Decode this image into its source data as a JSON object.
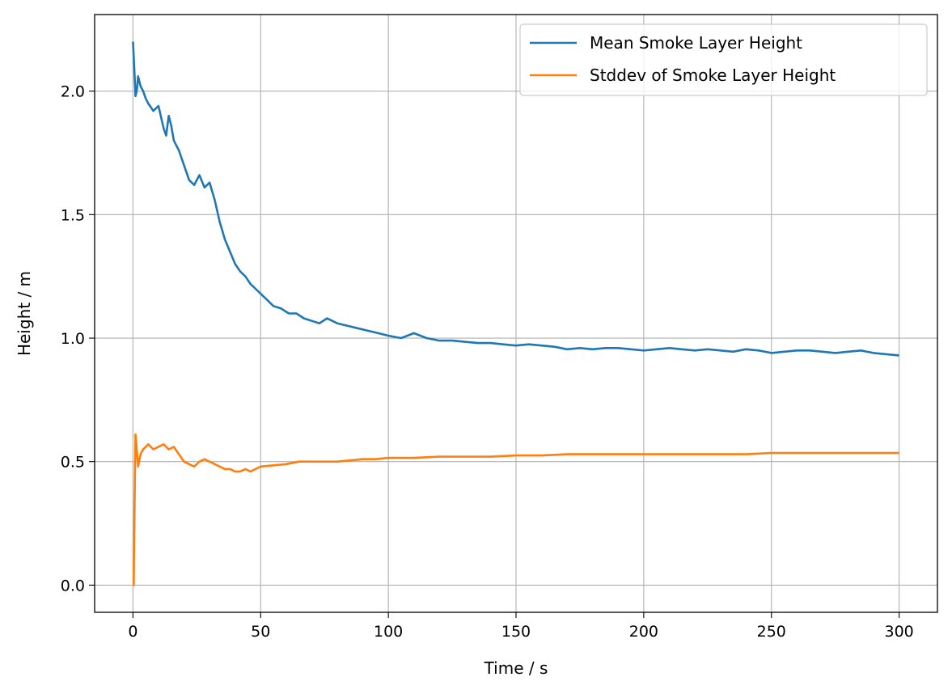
{
  "chart_data": {
    "type": "line",
    "title": "",
    "xlabel": "Time / s",
    "ylabel": "Height / m",
    "xlim": [
      -15,
      315
    ],
    "ylim": [
      -0.11,
      2.31
    ],
    "xticks": [
      0,
      50,
      100,
      150,
      200,
      250,
      300
    ],
    "xtick_labels": [
      "0",
      "50",
      "100",
      "150",
      "200",
      "250",
      "300"
    ],
    "yticks": [
      0.0,
      0.5,
      1.0,
      1.5,
      2.0
    ],
    "ytick_labels": [
      "0.0",
      "0.5",
      "1.0",
      "1.5",
      "2.0"
    ],
    "grid": true,
    "legend_position": "top-right",
    "series": [
      {
        "name": "Mean Smoke Layer Height",
        "color": "#1f77b4",
        "x": [
          0,
          0.5,
          1,
          1.5,
          2,
          3,
          4,
          5,
          6,
          8,
          10,
          12,
          13,
          14,
          15,
          16,
          18,
          20,
          22,
          24,
          26,
          28,
          30,
          32,
          34,
          36,
          38,
          40,
          42,
          44,
          46,
          48,
          50,
          52,
          55,
          58,
          61,
          64,
          67,
          70,
          73,
          76,
          80,
          84,
          88,
          92,
          96,
          100,
          105,
          110,
          115,
          120,
          125,
          130,
          135,
          140,
          145,
          150,
          155,
          160,
          165,
          170,
          175,
          180,
          185,
          190,
          195,
          200,
          205,
          210,
          215,
          220,
          225,
          230,
          235,
          240,
          245,
          250,
          255,
          260,
          265,
          270,
          275,
          280,
          285,
          290,
          295,
          300
        ],
        "y": [
          2.2,
          2.1,
          1.98,
          2.0,
          2.06,
          2.02,
          2.0,
          1.97,
          1.95,
          1.92,
          1.94,
          1.85,
          1.82,
          1.9,
          1.86,
          1.8,
          1.76,
          1.7,
          1.64,
          1.62,
          1.66,
          1.61,
          1.63,
          1.56,
          1.47,
          1.4,
          1.35,
          1.3,
          1.27,
          1.25,
          1.22,
          1.2,
          1.18,
          1.16,
          1.13,
          1.12,
          1.1,
          1.1,
          1.08,
          1.07,
          1.06,
          1.08,
          1.06,
          1.05,
          1.04,
          1.03,
          1.02,
          1.01,
          1.0,
          1.02,
          1.0,
          0.99,
          0.99,
          0.985,
          0.98,
          0.98,
          0.975,
          0.97,
          0.975,
          0.97,
          0.965,
          0.955,
          0.96,
          0.955,
          0.96,
          0.96,
          0.955,
          0.95,
          0.955,
          0.96,
          0.955,
          0.95,
          0.955,
          0.95,
          0.945,
          0.955,
          0.95,
          0.94,
          0.945,
          0.95,
          0.95,
          0.945,
          0.94,
          0.945,
          0.95,
          0.94,
          0.935,
          0.93
        ]
      },
      {
        "name": "Stddev of Smoke Layer Height",
        "color": "#ff7f0e",
        "x": [
          0,
          0.3,
          0.6,
          1,
          1.5,
          2,
          3,
          4,
          5,
          6,
          8,
          10,
          12,
          14,
          16,
          18,
          20,
          22,
          24,
          26,
          28,
          30,
          32,
          34,
          36,
          38,
          40,
          42,
          44,
          46,
          48,
          50,
          55,
          60,
          65,
          70,
          75,
          80,
          85,
          90,
          95,
          100,
          110,
          120,
          130,
          140,
          150,
          160,
          170,
          180,
          190,
          200,
          210,
          220,
          230,
          240,
          250,
          260,
          270,
          280,
          290,
          300
        ],
        "y": [
          0.0,
          0.0,
          0.3,
          0.61,
          0.55,
          0.48,
          0.53,
          0.55,
          0.56,
          0.57,
          0.55,
          0.56,
          0.57,
          0.55,
          0.56,
          0.53,
          0.5,
          0.49,
          0.48,
          0.5,
          0.51,
          0.5,
          0.49,
          0.48,
          0.47,
          0.47,
          0.46,
          0.46,
          0.47,
          0.46,
          0.47,
          0.48,
          0.485,
          0.49,
          0.5,
          0.5,
          0.5,
          0.5,
          0.505,
          0.51,
          0.51,
          0.515,
          0.515,
          0.52,
          0.52,
          0.52,
          0.525,
          0.525,
          0.53,
          0.53,
          0.53,
          0.53,
          0.53,
          0.53,
          0.53,
          0.53,
          0.535,
          0.535,
          0.535,
          0.535,
          0.535,
          0.535
        ]
      }
    ]
  }
}
